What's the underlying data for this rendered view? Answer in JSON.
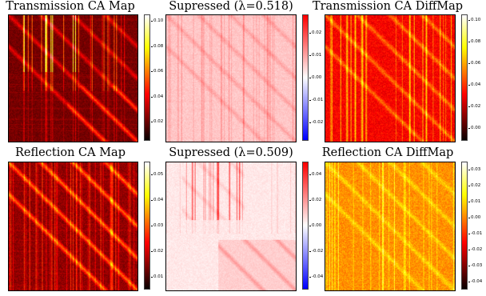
{
  "panels": [
    {
      "title": "Transmission CA Map",
      "colormap": "hot",
      "colorbar": {
        "min": 0.005,
        "max": 0.105,
        "ticks": [
          "0.10",
          "0.08",
          "0.06",
          "0.04",
          "0.02"
        ],
        "tick_values": [
          0.1,
          0.08,
          0.06,
          0.04,
          0.02
        ]
      }
    },
    {
      "title": "Supressed (λ=0.518)",
      "colormap": "bwr",
      "colorbar": {
        "min": -0.028,
        "max": 0.028,
        "ticks": [
          "0.02",
          "0.01",
          "0.00",
          "-0.01",
          "-0.02"
        ],
        "tick_values": [
          0.02,
          0.01,
          0.0,
          -0.01,
          -0.02
        ]
      }
    },
    {
      "title": "Transmission CA DiffMap",
      "colormap": "hot",
      "colorbar": {
        "min": -0.012,
        "max": 0.105,
        "ticks": [
          "0.10",
          "0.08",
          "0.06",
          "0.04",
          "0.02",
          "0.00"
        ],
        "tick_values": [
          0.1,
          0.08,
          0.06,
          0.04,
          0.02,
          0.0
        ]
      }
    },
    {
      "title": "Reflection CA Map",
      "colormap": "hot",
      "colorbar": {
        "min": 0.005,
        "max": 0.055,
        "ticks": [
          "0.05",
          "0.04",
          "0.03",
          "0.02",
          "0.01"
        ],
        "tick_values": [
          0.05,
          0.04,
          0.03,
          0.02,
          0.01
        ]
      }
    },
    {
      "title": "Supressed (λ=0.509)",
      "colormap": "bwr",
      "colorbar": {
        "min": -0.05,
        "max": 0.05,
        "ticks": [
          "0.04",
          "0.02",
          "0.00",
          "-0.02",
          "-0.04"
        ],
        "tick_values": [
          0.04,
          0.02,
          0.0,
          -0.02,
          -0.04
        ]
      }
    },
    {
      "title": "Reflection CA DiffMap",
      "colormap": "hot",
      "colorbar": {
        "min": -0.045,
        "max": 0.035,
        "ticks": [
          "0.03",
          "0.02",
          "0.01",
          "0.00",
          "-0.01",
          "-0.02",
          "-0.03",
          "-0.04"
        ],
        "tick_values": [
          0.03,
          0.02,
          0.01,
          0.0,
          -0.01,
          -0.02,
          -0.03,
          -0.04
        ]
      }
    }
  ]
}
